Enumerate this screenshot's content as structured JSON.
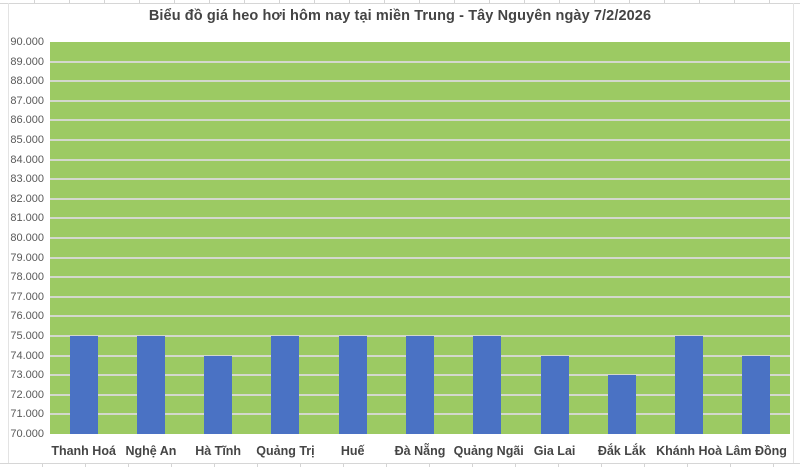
{
  "chart_data": {
    "type": "bar",
    "title": "Biểu đồ giá heo hơi hôm nay tại miền Trung - Tây Nguyên ngày 7/2/2026",
    "categories": [
      "Thanh Hoá",
      "Nghệ An",
      "Hà Tĩnh",
      "Quảng Trị",
      "Huế",
      "Đà Nẵng",
      "Quảng Ngãi",
      "Gia Lai",
      "Đắk Lắk",
      "Khánh Hoà",
      "Lâm Đồng"
    ],
    "values": [
      75000,
      75000,
      74000,
      75000,
      75000,
      75000,
      75000,
      74000,
      73000,
      75000,
      74000
    ],
    "xlabel": "",
    "ylabel": "",
    "ylim": [
      70000,
      90000
    ],
    "ytick_step": 1000,
    "ytick_labels": [
      "70.000",
      "71.000",
      "72.000",
      "73.000",
      "74.000",
      "75.000",
      "76.000",
      "77.000",
      "78.000",
      "79.000",
      "80.000",
      "81.000",
      "82.000",
      "83.000",
      "84.000",
      "85.000",
      "86.000",
      "87.000",
      "88.000",
      "89.000",
      "90.000"
    ],
    "grid": "horizontal",
    "legend": "none",
    "colors": {
      "bar": "#4a72c4",
      "plot_background": "#9cca63",
      "gridline": "#d3d8cc",
      "title_text": "#444444",
      "y_axis_text": "#595959",
      "x_axis_text": "#454545"
    }
  }
}
